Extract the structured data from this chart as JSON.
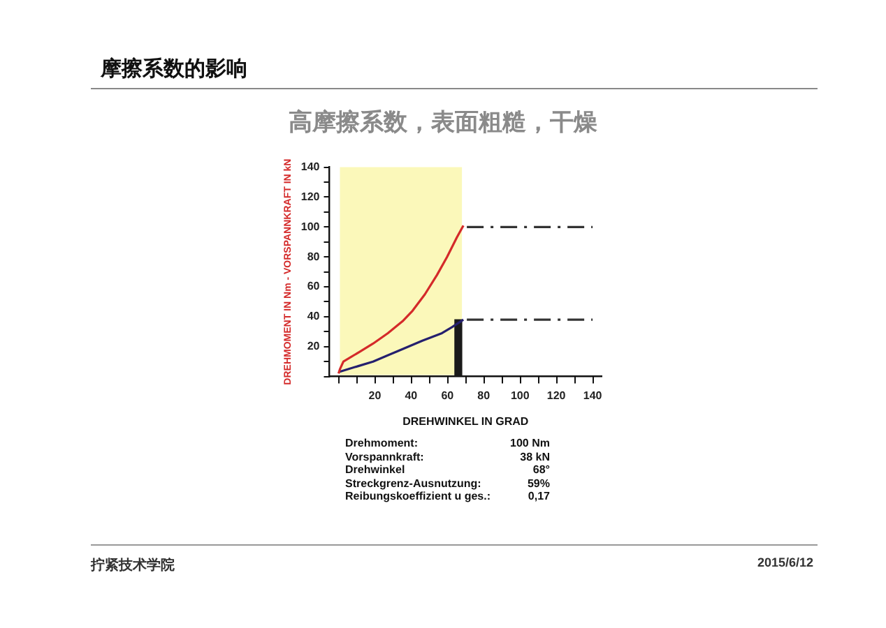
{
  "chart_data": {
    "type": "line",
    "title": "摩擦系数的影响",
    "subtitle": "高摩擦系数，表面粗糙，干燥",
    "xlabel": "DREHWINKEL IN GRAD",
    "ylabel": "DREHMOMENT IN Nm - VORSPANNKRAFT IN kN",
    "series": [
      {
        "color": "#d42a2a",
        "x": [
          0,
          0.8,
          2.7,
          10.9,
          19,
          27.2,
          35.3,
          40.8,
          47.6,
          54.3,
          59.8,
          65.2,
          68.8
        ],
        "values": [
          2,
          5,
          10,
          16,
          22,
          29,
          37,
          44,
          55,
          68,
          80,
          93,
          101
        ]
      },
      {
        "color": "#25206e",
        "x": [
          0,
          10.9,
          19,
          32.6,
          46.2,
          57,
          62.5,
          68.8
        ],
        "values": [
          3,
          7,
          10,
          17,
          24,
          29,
          33,
          38
        ]
      },
      {
        "type": "line",
        "line_style": "dashed",
        "color": "#333333",
        "x": [
          70.7,
          140
        ],
        "values": [
          100,
          100
        ]
      },
      {
        "type": "line",
        "line_style": "dashed",
        "color": "#333333",
        "x": [
          70.7,
          140
        ],
        "values": [
          38,
          38
        ]
      },
      {
        "type": "bar",
        "color": "#1a1a1a",
        "x": [
          66
        ],
        "values": [
          38
        ]
      }
    ],
    "bands": [
      {
        "axis": "x",
        "from": 0,
        "to": 68,
        "color": "#f2e81a"
      }
    ],
    "xlim": [
      0,
      140
    ],
    "ylim": [
      0,
      140
    ],
    "xticks": [
      {
        "value": 0,
        "label": null
      },
      {
        "value": 10,
        "label": null
      },
      20,
      {
        "value": 30,
        "label": null
      },
      40,
      {
        "value": 50,
        "label": null
      },
      60,
      {
        "value": 70,
        "label": null
      },
      80,
      {
        "value": 90,
        "label": null
      },
      100,
      {
        "value": 110,
        "label": null
      },
      120,
      {
        "value": 130,
        "label": null
      },
      140
    ],
    "yticks": [
      {
        "value": 0,
        "label": null
      },
      {
        "value": 10,
        "label": null
      },
      20,
      {
        "value": 30,
        "label": null
      },
      40,
      {
        "value": 50,
        "label": null
      },
      60,
      {
        "value": 70,
        "label": null
      },
      80,
      {
        "value": 90,
        "label": null
      },
      100,
      {
        "value": 110,
        "label": null
      },
      120,
      {
        "value": 130,
        "label": null
      },
      140
    ],
    "grid": false,
    "legend": false,
    "marker": "none",
    "annotations": [
      "Drehmoment:",
      "100 Nm",
      "Vorspannkraft:",
      "38 kN",
      "Drehwinkel",
      "68°",
      "Streckgrenz-Ausnutzung:",
      "59%",
      "Reibungskoeffizient u ges.:",
      "0,17",
      "拧紧技术学院",
      "2015/6/12"
    ]
  }
}
